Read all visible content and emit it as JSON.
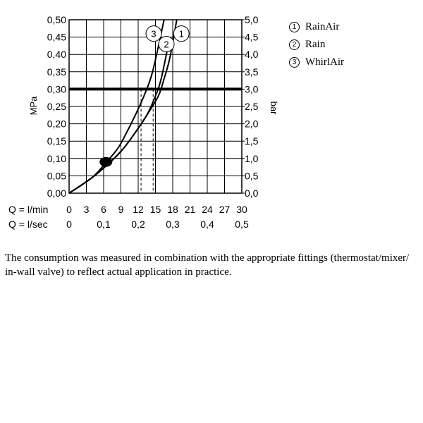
{
  "chart_data": {
    "type": "line",
    "ylabel_left": "MPa",
    "ylabel_right": "bar",
    "x_row_labels": [
      "Q = l/min",
      "Q = l/sec"
    ],
    "x_ticks_lmin": [
      "0",
      "3",
      "6",
      "9",
      "12",
      "15",
      "18",
      "21",
      "24",
      "27",
      "30"
    ],
    "x_ticks_lsec": [
      "0",
      "0,1",
      "0,2",
      "0,3",
      "0,4",
      "0,5"
    ],
    "y_ticks_left": [
      "0,00",
      "0,05",
      "0,10",
      "0,15",
      "0,20",
      "0,25",
      "0,30",
      "0,35",
      "0,40",
      "0,45",
      "0,50"
    ],
    "y_ticks_right": [
      "0,0",
      "0,5",
      "1,0",
      "1,5",
      "2,0",
      "2,5",
      "3,0",
      "3,5",
      "4,0",
      "4,5",
      "5,0"
    ],
    "xlim": [
      0,
      30
    ],
    "ylim": [
      0,
      0.5
    ],
    "grid": true,
    "reference_pressure": 0.3,
    "reference_flows": [
      12.5,
      14.6
    ],
    "series": [
      {
        "name": "1",
        "x": [
          0,
          4,
          7.5,
          9.5,
          11.5,
          13.5,
          15.5,
          16.5,
          17.5,
          18.7
        ],
        "y": [
          0,
          0.045,
          0.095,
          0.13,
          0.175,
          0.225,
          0.28,
          0.33,
          0.39,
          0.5
        ]
      },
      {
        "name": "2",
        "x": [
          0,
          4,
          7.5,
          9.5,
          11.5,
          13.5,
          15,
          16,
          17.5
        ],
        "y": [
          0,
          0.045,
          0.095,
          0.13,
          0.175,
          0.225,
          0.28,
          0.33,
          0.45
        ]
      },
      {
        "name": "3",
        "x": [
          0,
          4,
          6.5,
          8.5,
          10,
          11.5,
          13,
          14.5,
          16.5
        ],
        "y": [
          0,
          0.045,
          0.09,
          0.13,
          0.175,
          0.225,
          0.28,
          0.35,
          0.5
        ]
      }
    ],
    "curve_labels": [
      "3",
      "2",
      "1"
    ],
    "legend": [
      {
        "num": "1",
        "name": "RainAir"
      },
      {
        "num": "2",
        "name": "Rain"
      },
      {
        "num": "3",
        "name": "WhirlAir"
      }
    ],
    "legend_position": "top-right",
    "line_color": "#000000"
  },
  "footnote": "The consumption was measured in combination with the appropriate fittings (thermostat/mixer/ in-wall valve) to reflect actual application in practice."
}
